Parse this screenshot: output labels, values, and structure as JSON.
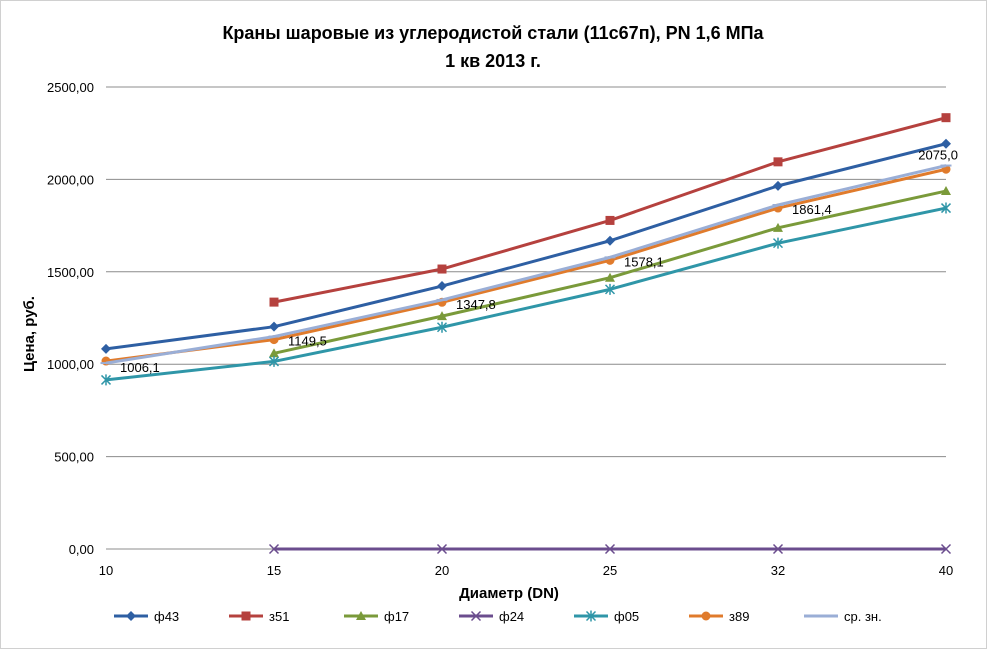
{
  "chart_data": {
    "type": "line",
    "title": "Краны шаровые из углеродистой стали (11с67п), PN 1,6 МПа",
    "subtitle": "1 кв 2013 г.",
    "xlabel": "Диаметр (DN)",
    "ylabel": "Цена, руб.",
    "categories": [
      "10",
      "15",
      "20",
      "25",
      "32",
      "40"
    ],
    "ylim": [
      0,
      2500
    ],
    "yticks": [
      {
        "value": 0,
        "label": "0,00"
      },
      {
        "value": 500,
        "label": "500,00"
      },
      {
        "value": 1000,
        "label": "1000,00"
      },
      {
        "value": 1500,
        "label": "1500,00"
      },
      {
        "value": 2000,
        "label": "2000,00"
      },
      {
        "value": 2500,
        "label": "2500,00"
      }
    ],
    "grid": "horizontal",
    "legend_position": "bottom",
    "series": [
      {
        "name": "ф43",
        "color": "#2e5fa3",
        "marker": "diamond",
        "values": [
          1083,
          1203,
          1423,
          1668,
          1965,
          2193
        ]
      },
      {
        "name": "з51",
        "color": "#b5413e",
        "marker": "square",
        "values": [
          null,
          1336,
          1515,
          1778,
          2095,
          2334
        ]
      },
      {
        "name": "ф17",
        "color": "#7a9a3a",
        "marker": "triangle",
        "values": [
          null,
          1059,
          1260,
          1468,
          1738,
          1937
        ]
      },
      {
        "name": "ф24",
        "color": "#6b4d8e",
        "marker": "x",
        "values": [
          null,
          0,
          0,
          0,
          0,
          0
        ]
      },
      {
        "name": "ф05",
        "color": "#2f96a8",
        "marker": "star",
        "values": [
          915,
          1015,
          1200,
          1405,
          1655,
          1845
        ]
      },
      {
        "name": "з89",
        "color": "#e07b2c",
        "marker": "circle",
        "values": [
          1017,
          1133,
          1335,
          1562,
          1845,
          2055
        ]
      },
      {
        "name": "ср. зн.",
        "color": "#9aaed6",
        "marker": "dash",
        "values": [
          1006.1,
          1149.5,
          1347.8,
          1578.1,
          1861.4,
          2075.0
        ]
      }
    ],
    "data_labels": [
      "1006,1",
      "1149,5",
      "1347,8",
      "1578,1",
      "1861,4",
      "2075,0"
    ]
  }
}
